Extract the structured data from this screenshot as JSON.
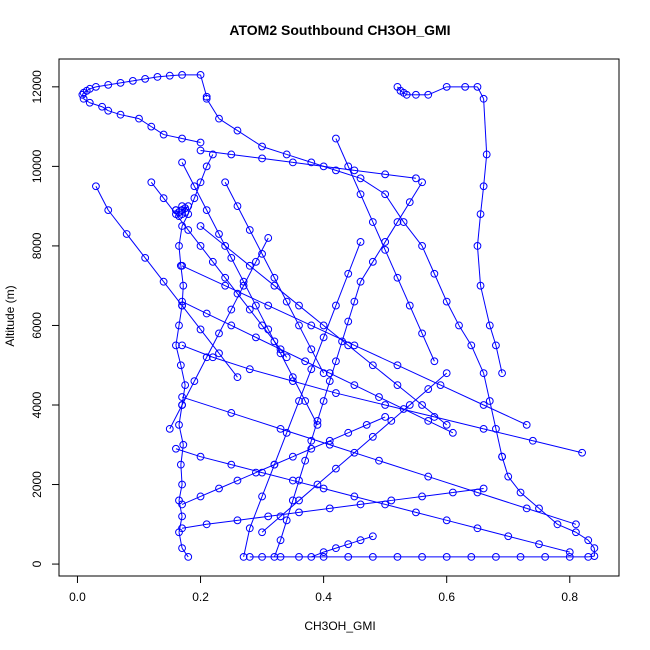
{
  "chart_data": {
    "type": "line",
    "title": "ATOM2 Southbound CH3OH_GMI",
    "xlabel": "CH3OH_GMI",
    "ylabel": "Altitude (m)",
    "xlim": [
      -0.03,
      0.88
    ],
    "ylim": [
      -300,
      12700
    ],
    "xticks": [
      0.0,
      0.2,
      0.4,
      0.6,
      0.8
    ],
    "xtick_labels": [
      "0.0",
      "0.2",
      "0.4",
      "0.6",
      "0.8"
    ],
    "yticks": [
      0,
      2000,
      4000,
      6000,
      8000,
      10000,
      12000
    ],
    "ytick_labels": [
      "0",
      "2000",
      "4000",
      "6000",
      "8000",
      "10000",
      "12000"
    ],
    "grid": false,
    "legend": "none",
    "series_color": "#0000ff",
    "marker": "open-circle",
    "segments": [
      {
        "x": [
          0.18,
          0.17,
          0.165,
          0.17,
          0.165,
          0.17,
          0.168,
          0.172,
          0.165,
          0.17,
          0.175,
          0.168,
          0.16,
          0.165,
          0.17,
          0.172,
          0.168,
          0.165,
          0.17,
          0.18,
          0.19,
          0.2,
          0.21,
          0.22
        ],
        "y": [
          180,
          400,
          800,
          1200,
          1600,
          2000,
          2500,
          3000,
          3500,
          4000,
          4500,
          5000,
          5500,
          6000,
          6500,
          7000,
          7500,
          8000,
          8500,
          8800,
          9200,
          9600,
          10000,
          10300
        ]
      },
      {
        "x": [
          0.2,
          0.17,
          0.14,
          0.12,
          0.1,
          0.07,
          0.05,
          0.04,
          0.02,
          0.01,
          0.008,
          0.01,
          0.015,
          0.02,
          0.03,
          0.05,
          0.07,
          0.09,
          0.11,
          0.13,
          0.15,
          0.17,
          0.2,
          0.21
        ],
        "y": [
          10600,
          10700,
          10800,
          11000,
          11200,
          11300,
          11400,
          11500,
          11600,
          11700,
          11800,
          11850,
          11900,
          11950,
          12000,
          12050,
          12100,
          12150,
          12200,
          12250,
          12280,
          12300,
          12300,
          11750
        ]
      },
      {
        "x": [
          0.21,
          0.23,
          0.26,
          0.3,
          0.34,
          0.38,
          0.42,
          0.46,
          0.5,
          0.53,
          0.56,
          0.58,
          0.6,
          0.62,
          0.64,
          0.66,
          0.67,
          0.68,
          0.69
        ],
        "y": [
          11700,
          11200,
          10900,
          10500,
          10300,
          10100,
          9900,
          9700,
          9300,
          8600,
          8000,
          7300,
          6600,
          6000,
          5500,
          4800,
          4100,
          3400,
          2700
        ]
      },
      {
        "x": [
          0.69,
          0.7,
          0.72,
          0.75,
          0.78,
          0.81,
          0.83,
          0.84,
          0.84,
          0.83,
          0.8,
          0.76,
          0.72,
          0.68,
          0.64,
          0.6,
          0.56,
          0.52,
          0.48,
          0.44,
          0.4,
          0.36,
          0.33,
          0.3,
          0.28
        ],
        "y": [
          2700,
          2200,
          1800,
          1400,
          1000,
          800,
          600,
          400,
          200,
          180,
          180,
          180,
          180,
          180,
          180,
          180,
          180,
          180,
          180,
          180,
          180,
          180,
          180,
          180,
          180
        ]
      },
      {
        "x": [
          0.52,
          0.525,
          0.53,
          0.535,
          0.55,
          0.57,
          0.6,
          0.63,
          0.65,
          0.66,
          0.665,
          0.66,
          0.655,
          0.65,
          0.655,
          0.67,
          0.68,
          0.69
        ],
        "y": [
          12000,
          11900,
          11850,
          11800,
          11800,
          11800,
          12000,
          12000,
          12000,
          11700,
          10300,
          9500,
          8800,
          8000,
          7000,
          6000,
          5500,
          4800
        ]
      },
      {
        "x": [
          0.32,
          0.33,
          0.34,
          0.35,
          0.36,
          0.37,
          0.38,
          0.39,
          0.4,
          0.41,
          0.42,
          0.43,
          0.44,
          0.45,
          0.46,
          0.48,
          0.5,
          0.52,
          0.54,
          0.56
        ],
        "y": [
          180,
          600,
          1100,
          1600,
          2100,
          2600,
          3100,
          3600,
          4100,
          4600,
          5100,
          5600,
          6100,
          6600,
          7100,
          7600,
          8100,
          8600,
          9100,
          9600
        ]
      },
      {
        "x": [
          0.17,
          0.22,
          0.28,
          0.35,
          0.42,
          0.5,
          0.58,
          0.66,
          0.74,
          0.82
        ],
        "y": [
          5500,
          5200,
          4900,
          4600,
          4300,
          4000,
          3700,
          3400,
          3100,
          2800
        ]
      },
      {
        "x": [
          0.17,
          0.25,
          0.33,
          0.41,
          0.49,
          0.57,
          0.65,
          0.73,
          0.81
        ],
        "y": [
          4200,
          3800,
          3400,
          3000,
          2600,
          2200,
          1800,
          1400,
          1000
        ]
      },
      {
        "x": [
          0.17,
          0.21,
          0.25,
          0.29,
          0.33,
          0.37,
          0.41,
          0.45,
          0.49,
          0.53,
          0.57,
          0.61
        ],
        "y": [
          6600,
          6300,
          6000,
          5700,
          5400,
          5100,
          4800,
          4500,
          4200,
          3900,
          3600,
          3300
        ]
      },
      {
        "x": [
          0.27,
          0.28,
          0.3,
          0.32,
          0.34,
          0.36,
          0.38,
          0.4,
          0.42,
          0.44,
          0.46
        ],
        "y": [
          180,
          900,
          1700,
          2500,
          3300,
          4100,
          4900,
          5700,
          6500,
          7300,
          8100
        ]
      },
      {
        "x": [
          0.12,
          0.14,
          0.16,
          0.18,
          0.2,
          0.22,
          0.24,
          0.26,
          0.28,
          0.3,
          0.32,
          0.34
        ],
        "y": [
          9600,
          9200,
          8800,
          8400,
          8000,
          7600,
          7200,
          6800,
          6400,
          6000,
          5600,
          5200
        ]
      },
      {
        "x": [
          0.03,
          0.05,
          0.08,
          0.11,
          0.14,
          0.17,
          0.2,
          0.23,
          0.26
        ],
        "y": [
          9500,
          8900,
          8300,
          7700,
          7100,
          6500,
          5900,
          5300,
          4700
        ]
      },
      {
        "x": [
          0.2,
          0.24,
          0.28,
          0.32,
          0.36,
          0.4,
          0.44,
          0.48,
          0.52,
          0.56,
          0.6
        ],
        "y": [
          8500,
          8000,
          7500,
          7000,
          6500,
          6000,
          5500,
          5000,
          4500,
          4000,
          3500
        ]
      },
      {
        "x": [
          0.16,
          0.2,
          0.25,
          0.3,
          0.35,
          0.4,
          0.45,
          0.5,
          0.55,
          0.6,
          0.65,
          0.7,
          0.75,
          0.8
        ],
        "y": [
          2900,
          2700,
          2500,
          2300,
          2100,
          1900,
          1700,
          1500,
          1300,
          1100,
          900,
          700,
          500,
          300
        ]
      },
      {
        "x": [
          0.17,
          0.24,
          0.31,
          0.38,
          0.45,
          0.52,
          0.59,
          0.66,
          0.73
        ],
        "y": [
          7500,
          7000,
          6500,
          6000,
          5500,
          5000,
          4500,
          4000,
          3500
        ]
      },
      {
        "x": [
          0.2,
          0.25,
          0.3,
          0.35,
          0.4,
          0.45,
          0.5,
          0.55
        ],
        "y": [
          10400,
          10300,
          10200,
          10100,
          10000,
          9900,
          9800,
          9700
        ]
      },
      {
        "x": [
          0.17,
          0.19,
          0.21,
          0.23,
          0.25,
          0.27,
          0.29,
          0.31,
          0.33,
          0.35,
          0.37,
          0.39
        ],
        "y": [
          10100,
          9500,
          8900,
          8300,
          7700,
          7100,
          6500,
          5900,
          5300,
          4700,
          4100,
          3500
        ]
      },
      {
        "x": [
          0.17,
          0.2,
          0.23,
          0.26,
          0.29,
          0.32,
          0.35,
          0.38,
          0.41,
          0.44,
          0.47,
          0.5
        ],
        "y": [
          1500,
          1700,
          1900,
          2100,
          2300,
          2500,
          2700,
          2900,
          3100,
          3300,
          3500,
          3700
        ]
      },
      {
        "x": [
          0.15,
          0.17,
          0.19,
          0.21,
          0.23,
          0.25,
          0.27,
          0.29,
          0.31
        ],
        "y": [
          3400,
          4000,
          4600,
          5200,
          5800,
          6400,
          7000,
          7600,
          8200
        ]
      },
      {
        "x": [
          0.3,
          0.33,
          0.36,
          0.39,
          0.42,
          0.45,
          0.48,
          0.51,
          0.54,
          0.57,
          0.6
        ],
        "y": [
          800,
          1200,
          1600,
          2000,
          2400,
          2800,
          3200,
          3600,
          4000,
          4400,
          4800
        ]
      },
      {
        "x": [
          0.17,
          0.21,
          0.26,
          0.31,
          0.36,
          0.41,
          0.46,
          0.51,
          0.56,
          0.61,
          0.66
        ],
        "y": [
          900,
          1000,
          1100,
          1200,
          1300,
          1400,
          1500,
          1600,
          1700,
          1800,
          1900
        ]
      },
      {
        "x": [
          0.24,
          0.26,
          0.28,
          0.3,
          0.32,
          0.34,
          0.36,
          0.38,
          0.4
        ],
        "y": [
          9600,
          9000,
          8400,
          7800,
          7200,
          6600,
          6000,
          5400,
          4800
        ]
      },
      {
        "x": [
          0.16,
          0.165,
          0.17,
          0.175,
          0.18,
          0.17,
          0.165,
          0.16,
          0.17,
          0.175
        ],
        "y": [
          8900,
          8850,
          8900,
          8950,
          9000,
          8800,
          8750,
          8900,
          9000,
          8850
        ]
      },
      {
        "x": [
          0.42,
          0.44,
          0.46,
          0.48,
          0.5,
          0.52,
          0.54,
          0.56,
          0.58
        ],
        "y": [
          10700,
          10000,
          9300,
          8600,
          7900,
          7200,
          6500,
          5800,
          5100
        ]
      },
      {
        "x": [
          0.38,
          0.4,
          0.42,
          0.44,
          0.46,
          0.48
        ],
        "y": [
          180,
          300,
          400,
          500,
          600,
          700
        ]
      }
    ]
  }
}
